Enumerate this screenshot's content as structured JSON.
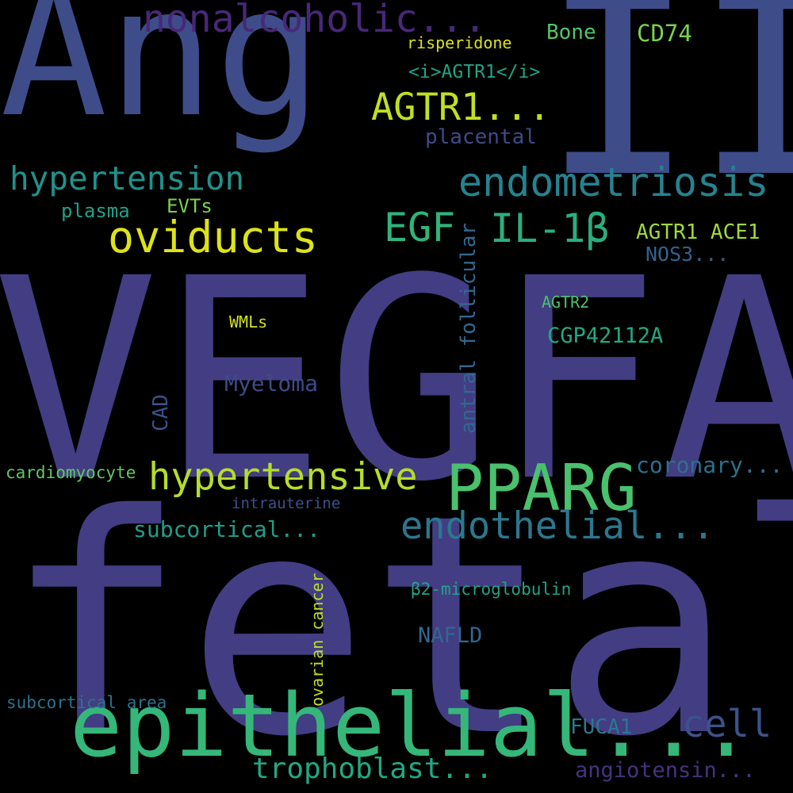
{
  "background": "#000000",
  "palette": "viridis",
  "words": [
    {
      "text": "Ang",
      "color": "#3e4c8a"
    },
    {
      "text": "II",
      "color": "#3e4c8a"
    },
    {
      "text": "VEGFA",
      "color": "#433d84"
    },
    {
      "text": "fetal",
      "color": "#433d84"
    },
    {
      "text": "epithelial...",
      "color": "#35b779"
    },
    {
      "text": "PPARG",
      "color": "#4ac16d"
    },
    {
      "text": "oviducts",
      "color": "#dde318"
    },
    {
      "text": "hypertensive",
      "color": "#b5de2b"
    },
    {
      "text": "endometriosis",
      "color": "#26828e"
    },
    {
      "text": "hypertension",
      "color": "#21918c"
    },
    {
      "text": "nonalcoholic...",
      "color": "#482878"
    },
    {
      "text": "AGTR1...",
      "color": "#c0df25"
    },
    {
      "text": "EGF",
      "color": "#2fb47c"
    },
    {
      "text": "IL-1β",
      "color": "#29af7f"
    },
    {
      "text": "endothelial...",
      "color": "#2a788e"
    },
    {
      "text": "cell",
      "color": "#3b528b"
    },
    {
      "text": "trophoblast...",
      "color": "#22a884"
    },
    {
      "text": "CD74",
      "color": "#7ad151"
    },
    {
      "text": "Bone",
      "color": "#52c569"
    },
    {
      "text": "risperidone",
      "color": "#dde318"
    },
    {
      "text": "<i>AGTR1</i>",
      "color": "#20a386"
    },
    {
      "text": "placental",
      "color": "#3e4a89"
    },
    {
      "text": "plasma",
      "color": "#1fa187"
    },
    {
      "text": "EVTs",
      "color": "#7ad151"
    },
    {
      "text": "AGTR1 ACE1",
      "color": "#a0da39"
    },
    {
      "text": "NOS3...",
      "color": "#33638d"
    },
    {
      "text": "AGTR2",
      "color": "#4ac16d"
    },
    {
      "text": "CGP42112A",
      "color": "#22a884"
    },
    {
      "text": "WMLs",
      "color": "#d0e11c"
    },
    {
      "text": "Myeloma",
      "color": "#3e4a89"
    },
    {
      "text": "CAD",
      "color": "#3b528b"
    },
    {
      "text": "antral follicular",
      "color": "#31688e"
    },
    {
      "text": "coronary...",
      "color": "#2d708e"
    },
    {
      "text": "cardiomyocyte",
      "color": "#5ec962"
    },
    {
      "text": "intrauterine",
      "color": "#3b528b"
    },
    {
      "text": "subcortical...",
      "color": "#1f9e89"
    },
    {
      "text": "β2-microglobulin",
      "color": "#20a386"
    },
    {
      "text": "ovarian cancer",
      "color": "#bddf26"
    },
    {
      "text": "NAFLD",
      "color": "#31688e"
    },
    {
      "text": "subcortical area",
      "color": "#2c718e"
    },
    {
      "text": "FUCA1",
      "color": "#2a788e"
    },
    {
      "text": "angiotensin...",
      "color": "#46337e"
    }
  ]
}
